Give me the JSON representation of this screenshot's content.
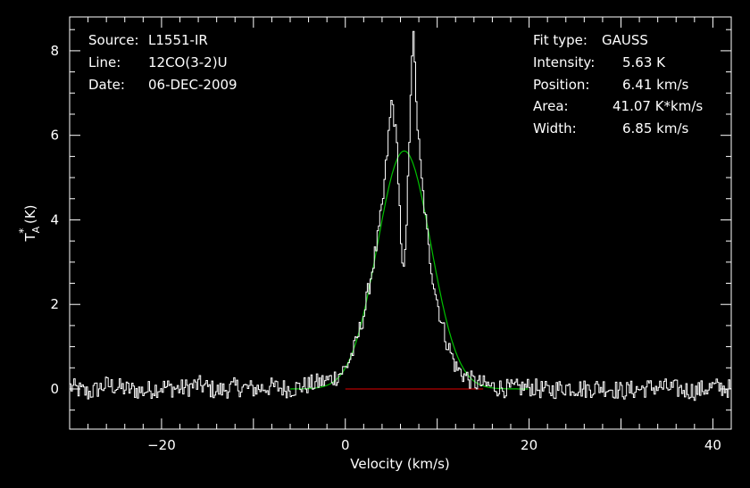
{
  "header_left": {
    "rows": [
      {
        "label": "Source:",
        "value": "L1551-IR"
      },
      {
        "label": "Line:",
        "value": "12CO(3-2)U"
      },
      {
        "label": "Date:",
        "value": "06-DEC-2009"
      }
    ]
  },
  "header_right": {
    "rows": [
      {
        "label": "Fit type:",
        "value": "GAUSS"
      },
      {
        "label": "Intensity:",
        "value": "5.63 K"
      },
      {
        "label": "Position:",
        "value": "6.41 km/s"
      },
      {
        "label": "Area:",
        "value": "41.07 K*km/s"
      },
      {
        "label": "Width:",
        "value": "6.85 km/s"
      }
    ]
  },
  "chart_data": {
    "type": "line",
    "xlabel": "Velocity (km/s)",
    "ylabel": "T_A^* (K)",
    "xlim": [
      -30,
      42
    ],
    "ylim": [
      -0.95,
      8.8
    ],
    "xticks": [
      -20,
      0,
      20,
      40
    ],
    "yticks": [
      0,
      2,
      4,
      6,
      8
    ],
    "grid": false,
    "colors": {
      "spectrum": "#ffffff",
      "fit": "#00c000",
      "baseline": "#e00000",
      "axes": "#ffffff",
      "background": "#000000"
    },
    "series": [
      {
        "x": [
          -30,
          -28,
          -26,
          -24,
          -22,
          -20,
          -18,
          -16,
          -14,
          -12,
          -10,
          -8,
          -6,
          -4,
          -3,
          -2,
          -1,
          0,
          1,
          2,
          3,
          3.5,
          4,
          4.5,
          5,
          5.3,
          5.6,
          5.9,
          6.2,
          6.5,
          6.8,
          7.1,
          7.3,
          7.5,
          7.8,
          8.2,
          8.6,
          9,
          9.5,
          10,
          10.5,
          11,
          11.5,
          12,
          13,
          14,
          15,
          16,
          18,
          20,
          22,
          24,
          26,
          28,
          30,
          32,
          34,
          36,
          38,
          40,
          42
        ],
        "values": [
          0.05,
          -0.1,
          0.1,
          0.0,
          -0.05,
          0.05,
          0.0,
          0.1,
          -0.05,
          0.05,
          0.0,
          0.05,
          0.0,
          0.1,
          0.15,
          0.2,
          0.3,
          0.5,
          1.0,
          1.8,
          3.0,
          3.6,
          4.4,
          5.6,
          6.9,
          6.3,
          5.6,
          4.0,
          2.6,
          3.2,
          5.2,
          7.5,
          8.5,
          7.6,
          6.2,
          5.0,
          4.2,
          3.3,
          2.6,
          2.0,
          1.5,
          1.1,
          0.8,
          0.5,
          0.3,
          0.15,
          0.1,
          0.05,
          0.0,
          0.05,
          -0.05,
          0.05,
          0.0,
          0.05,
          -0.05,
          0.0,
          0.05,
          0.0,
          -0.05,
          0.05,
          0.0
        ]
      },
      {
        "function": "gaussian",
        "amplitude": 5.63,
        "center": 6.41,
        "fwhm": 6.85
      },
      {
        "x": [
          0,
          15
        ],
        "values": [
          0,
          0
        ]
      }
    ]
  }
}
